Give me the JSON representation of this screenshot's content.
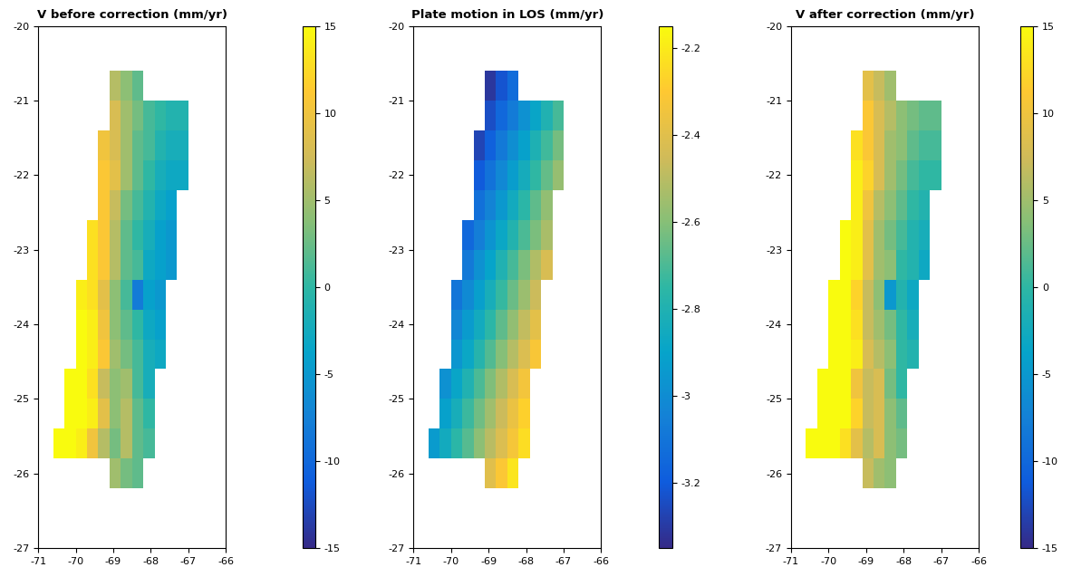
{
  "chart_data": [
    {
      "type": "heatmap",
      "title": "V before correction (mm/yr)",
      "x_edges": [
        -70.6,
        -70.3,
        -70.0,
        -69.7,
        -69.4,
        -69.1,
        -68.8,
        -68.5,
        -68.2,
        -67.9,
        -67.6,
        -67.3,
        -67.0,
        -66.7
      ],
      "y_edges": [
        -20.6,
        -21.0,
        -21.4,
        -21.8,
        -22.2,
        -22.6,
        -23.0,
        -23.4,
        -23.8,
        -24.2,
        -24.6,
        -25.0,
        -25.4,
        -25.8,
        -26.2
      ],
      "cells": [
        [
          null,
          null,
          null,
          null,
          null,
          6,
          4,
          2,
          null,
          null,
          null,
          null,
          null
        ],
        [
          null,
          null,
          null,
          null,
          null,
          8,
          5,
          3,
          1,
          0,
          -1,
          -1,
          null
        ],
        [
          null,
          null,
          null,
          null,
          10,
          8,
          5,
          2,
          1,
          -1,
          -2,
          -2,
          null
        ],
        [
          null,
          null,
          null,
          null,
          11,
          9,
          5,
          2,
          0,
          -2,
          -3,
          -3,
          null
        ],
        [
          null,
          null,
          null,
          null,
          11,
          7,
          3,
          1,
          -1,
          -3,
          -4,
          null,
          null
        ],
        [
          null,
          null,
          null,
          13,
          11,
          6,
          2,
          0,
          -2,
          -4,
          -5,
          null,
          null
        ],
        [
          null,
          null,
          null,
          13,
          11,
          6,
          2,
          1,
          -3,
          -4,
          -5,
          null,
          null
        ],
        [
          null,
          null,
          14,
          13,
          9,
          4,
          1,
          -8,
          -4,
          -5,
          null,
          null,
          null
        ],
        [
          null,
          null,
          15,
          14,
          10,
          4,
          2,
          0,
          -3,
          -4,
          null,
          null,
          null
        ],
        [
          null,
          null,
          15,
          14,
          11,
          5,
          3,
          1,
          -2,
          -3,
          null,
          null,
          null
        ],
        [
          null,
          16,
          15,
          13,
          7,
          4,
          5,
          1,
          -2,
          null,
          null,
          null,
          null
        ],
        [
          null,
          16,
          15,
          14,
          9,
          4,
          6,
          2,
          0,
          null,
          null,
          null,
          null
        ],
        [
          15,
          15,
          14,
          10,
          6,
          3,
          6,
          2,
          1,
          null,
          null,
          null,
          null
        ],
        [
          null,
          null,
          null,
          null,
          null,
          5,
          3,
          2,
          null,
          null,
          null,
          null,
          null
        ]
      ],
      "colorbar": {
        "range": [
          -15,
          15
        ],
        "ticks": [
          -15,
          -10,
          -5,
          0,
          5,
          10,
          15
        ]
      },
      "xlim": [
        -71,
        -66
      ],
      "xticks": [
        -71,
        -70,
        -69,
        -68,
        -67,
        -66
      ],
      "ylim": [
        -27,
        -20
      ],
      "yticks": [
        -27,
        -26,
        -25,
        -24,
        -23,
        -22,
        -21,
        -20
      ]
    },
    {
      "type": "heatmap",
      "title": "Plate motion in LOS (mm/yr)",
      "x_edges": [
        -70.6,
        -70.3,
        -70.0,
        -69.7,
        -69.4,
        -69.1,
        -68.8,
        -68.5,
        -68.2,
        -67.9,
        -67.6,
        -67.3,
        -67.0,
        -66.7
      ],
      "y_edges": [
        -20.6,
        -21.0,
        -21.4,
        -21.8,
        -22.2,
        -22.6,
        -23.0,
        -23.4,
        -23.8,
        -24.2,
        -24.6,
        -25.0,
        -25.4,
        -25.8,
        -26.2
      ],
      "cells": [
        [
          null,
          null,
          null,
          null,
          null,
          -3.31,
          -3.22,
          -3.13,
          null,
          null,
          null,
          null,
          null
        ],
        [
          null,
          null,
          null,
          null,
          null,
          -3.24,
          -3.15,
          -3.07,
          -2.98,
          -2.89,
          -2.8,
          -2.71,
          null
        ],
        [
          null,
          null,
          null,
          null,
          -3.27,
          -3.18,
          -3.08,
          -2.99,
          -2.91,
          -2.81,
          -2.72,
          -2.63,
          null
        ],
        [
          null,
          null,
          null,
          null,
          -3.2,
          -3.11,
          -3.02,
          -2.93,
          -2.84,
          -2.75,
          -2.66,
          -2.57,
          null
        ],
        [
          null,
          null,
          null,
          null,
          -3.12,
          -3.04,
          -2.95,
          -2.85,
          -2.76,
          -2.67,
          -2.58,
          null,
          null
        ],
        [
          null,
          null,
          null,
          -3.15,
          -3.06,
          -2.97,
          -2.88,
          -2.79,
          -2.7,
          -2.62,
          -2.53,
          null,
          null
        ],
        [
          null,
          null,
          null,
          -3.08,
          -2.98,
          -2.9,
          -2.8,
          -2.71,
          -2.62,
          -2.52,
          -2.43,
          null,
          null
        ],
        [
          null,
          null,
          -3.1,
          -3.01,
          -2.92,
          -2.83,
          -2.74,
          -2.65,
          -2.56,
          -2.46,
          null,
          null,
          null
        ],
        [
          null,
          null,
          -3.03,
          -2.94,
          -2.85,
          -2.76,
          -2.67,
          -2.58,
          -2.48,
          -2.39,
          null,
          null,
          null
        ],
        [
          null,
          null,
          -2.96,
          -2.88,
          -2.78,
          -2.69,
          -2.6,
          -2.51,
          -2.42,
          -2.32,
          null,
          null,
          null
        ],
        [
          null,
          -2.98,
          -2.89,
          -2.8,
          -2.7,
          -2.61,
          -2.52,
          -2.43,
          -2.34,
          null,
          null,
          null,
          null
        ],
        [
          null,
          -2.91,
          -2.83,
          -2.73,
          -2.64,
          -2.55,
          -2.46,
          -2.37,
          -2.28,
          null,
          null,
          null,
          null
        ],
        [
          -2.94,
          -2.85,
          -2.76,
          -2.68,
          -2.59,
          -2.5,
          -2.42,
          -2.33,
          -2.24,
          null,
          null,
          null,
          null
        ],
        [
          null,
          null,
          null,
          null,
          null,
          -2.4,
          -2.31,
          -2.22,
          null,
          null,
          null,
          null,
          null
        ]
      ],
      "colorbar": {
        "range": [
          -3.35,
          -2.15
        ],
        "ticks": [
          -3.2,
          -3,
          -2.8,
          -2.6,
          -2.4,
          -2.2
        ]
      },
      "xlim": [
        -71,
        -66
      ],
      "xticks": [
        -71,
        -70,
        -69,
        -68,
        -67,
        -66
      ],
      "ylim": [
        -27,
        -20
      ],
      "yticks": [
        -27,
        -26,
        -25,
        -24,
        -23,
        -22,
        -21,
        -20
      ]
    },
    {
      "type": "heatmap",
      "title": "V after correction (mm/yr)",
      "x_edges": [
        -70.6,
        -70.3,
        -70.0,
        -69.7,
        -69.4,
        -69.1,
        -68.8,
        -68.5,
        -68.2,
        -67.9,
        -67.6,
        -67.3,
        -67.0,
        -66.7
      ],
      "y_edges": [
        -20.6,
        -21.0,
        -21.4,
        -21.8,
        -22.2,
        -22.6,
        -23.0,
        -23.4,
        -23.8,
        -24.2,
        -24.6,
        -25.0,
        -25.4,
        -25.8,
        -26.2
      ],
      "cells": [
        [
          null,
          null,
          null,
          null,
          null,
          9,
          7,
          5,
          null,
          null,
          null,
          null,
          null
        ],
        [
          null,
          null,
          null,
          null,
          null,
          11,
          8,
          6,
          4,
          3,
          2,
          2,
          null
        ],
        [
          null,
          null,
          null,
          null,
          13,
          11,
          8,
          5,
          4,
          2,
          1,
          1,
          null
        ],
        [
          null,
          null,
          null,
          null,
          14,
          12,
          8,
          5,
          3,
          1,
          0,
          0,
          null
        ],
        [
          null,
          null,
          null,
          null,
          14,
          10,
          6,
          4,
          2,
          0,
          -1,
          null,
          null
        ],
        [
          null,
          null,
          null,
          16,
          14,
          9,
          5,
          3,
          1,
          -1,
          -2,
          null,
          null
        ],
        [
          null,
          null,
          null,
          16,
          14,
          9,
          5,
          4,
          0,
          -1,
          -3,
          null,
          null
        ],
        [
          null,
          null,
          17,
          16,
          12,
          7,
          4,
          -5,
          -1,
          -3,
          null,
          null,
          null
        ],
        [
          null,
          null,
          18,
          17,
          13,
          7,
          5,
          3,
          0,
          -2,
          null,
          null,
          null
        ],
        [
          null,
          null,
          18,
          17,
          14,
          8,
          6,
          4,
          0,
          -1,
          null,
          null,
          null
        ],
        [
          null,
          19,
          18,
          16,
          10,
          7,
          8,
          3,
          0,
          null,
          null,
          null,
          null
        ],
        [
          null,
          19,
          18,
          17,
          12,
          7,
          8,
          4,
          2,
          null,
          null,
          null,
          null
        ],
        [
          18,
          18,
          17,
          13,
          9,
          6,
          8,
          4,
          3,
          null,
          null,
          null,
          null
        ],
        [
          null,
          null,
          null,
          null,
          null,
          7,
          5,
          4,
          null,
          null,
          null,
          null,
          null
        ]
      ],
      "colorbar": {
        "range": [
          -15,
          15
        ],
        "ticks": [
          -15,
          -10,
          -5,
          0,
          5,
          10,
          15
        ]
      },
      "xlim": [
        -71,
        -66
      ],
      "xticks": [
        -71,
        -70,
        -69,
        -68,
        -67,
        -66
      ],
      "ylim": [
        -27,
        -20
      ],
      "yticks": [
        -27,
        -26,
        -25,
        -24,
        -23,
        -22,
        -21,
        -20
      ]
    }
  ]
}
